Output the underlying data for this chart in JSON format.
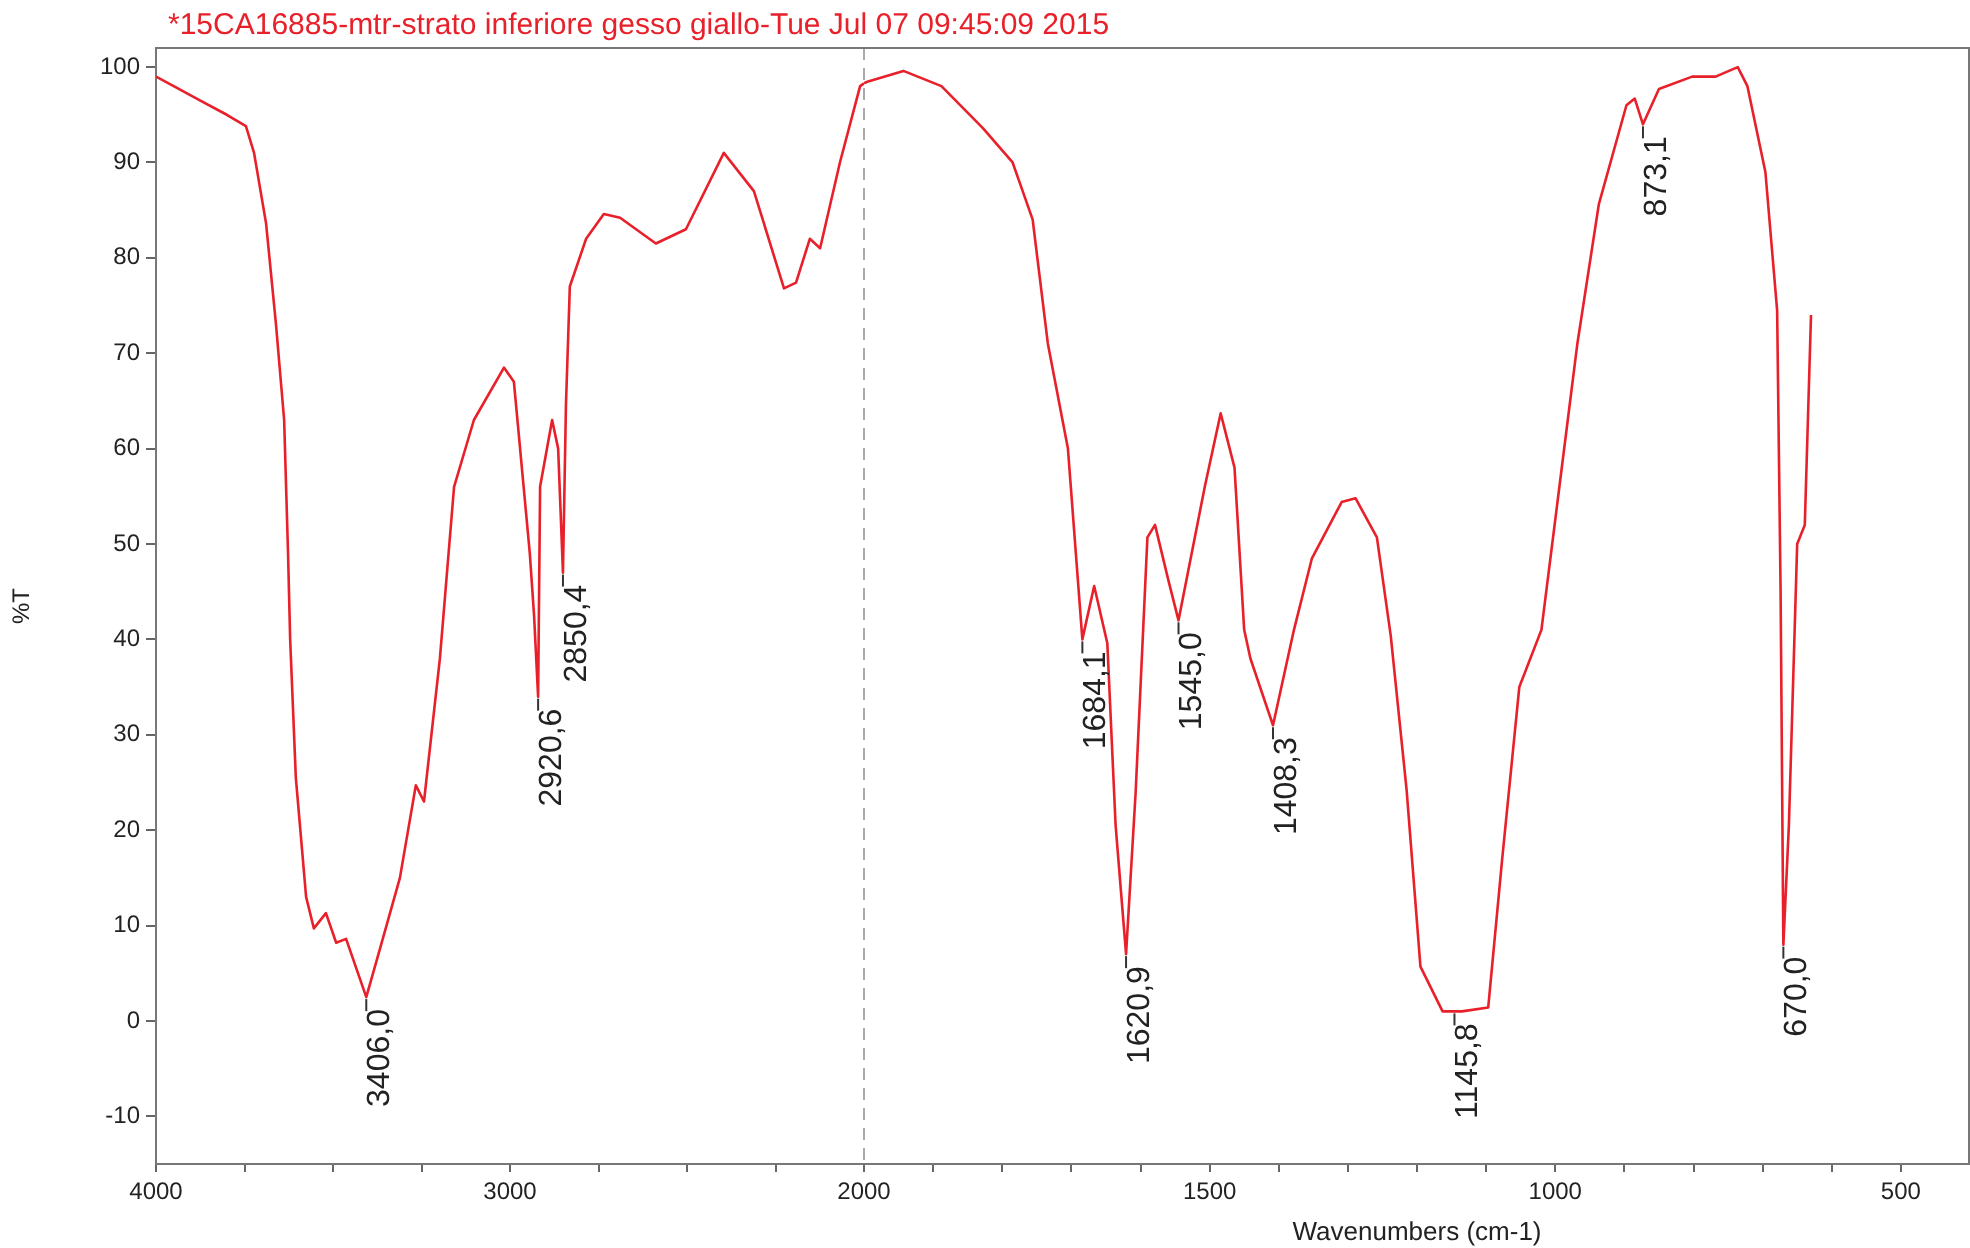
{
  "chart_data": [
    {
      "type": "line",
      "title": "*15CA16885-mtr-strato inferiore gesso giallo-Tue Jul 07 09:45:09 2015",
      "ylabel": "%T",
      "xlim": [
        4000,
        2000
      ],
      "ylim": [
        -15,
        102
      ],
      "xticks": [
        4000,
        {
          "value": 3750,
          "label": null
        },
        {
          "value": 3500,
          "label": null
        },
        {
          "value": 3250,
          "label": null
        },
        3000,
        {
          "value": 2750,
          "label": null
        },
        {
          "value": 2500,
          "label": null
        },
        {
          "value": 2250,
          "label": null
        }
      ],
      "yticks": [
        -10,
        0,
        10,
        20,
        30,
        40,
        50,
        60,
        70,
        80,
        90,
        100
      ],
      "grid": false,
      "legend": false,
      "marker": "none",
      "line_style": "solid",
      "annotations": [
        {
          "text": "3406,0",
          "x": 3406.0,
          "y": 2.5
        },
        {
          "text": "2920,6",
          "x": 2920.6,
          "y": 34
        },
        {
          "text": "2850,4",
          "x": 2850.4,
          "y": 47
        }
      ],
      "series": [
        {
          "color": "#e8202a",
          "x": [
            4000,
            3950,
            3876,
            3800,
            3746,
            3723,
            3689,
            3661,
            3638,
            3627,
            3621,
            3605,
            3576,
            3554,
            3520,
            3491,
            3463,
            3406,
            3367,
            3311,
            3266,
            3243,
            3198,
            3158,
            3102,
            3017,
            2989,
            2944,
            2932,
            2920.6,
            2915,
            2881,
            2864,
            2850.4,
            2842,
            2831,
            2785,
            2735,
            2689,
            2588,
            2503,
            2396,
            2311,
            2226,
            2192,
            2153,
            2124,
            2068,
            2011,
            2000
          ],
          "values": [
            99,
            98,
            96.5,
            95,
            93.8,
            91,
            83.6,
            73,
            63,
            49,
            40,
            25.5,
            13,
            9.7,
            11.3,
            8.2,
            8.6,
            2.5,
            7.6,
            15,
            24.7,
            23,
            38,
            56,
            63,
            68.5,
            67,
            49,
            42.5,
            34,
            56,
            63,
            60,
            47,
            64.5,
            77,
            82,
            84.6,
            84.2,
            81.5,
            83,
            91,
            87,
            76.8,
            77.4,
            82,
            81,
            90,
            98,
            98.3
          ]
        }
      ]
    },
    {
      "type": "line",
      "xlabel": "Wavenumbers (cm-1)",
      "xlim": [
        2000,
        400
      ],
      "ylim": [
        -15,
        102
      ],
      "tick_labels": "x",
      "xticks": [
        2000,
        {
          "value": 1900,
          "label": null
        },
        {
          "value": 1800,
          "label": null
        },
        {
          "value": 1700,
          "label": null
        },
        {
          "value": 1600,
          "label": null
        },
        1500,
        {
          "value": 1400,
          "label": null
        },
        {
          "value": 1300,
          "label": null
        },
        {
          "value": 1200,
          "label": null
        },
        {
          "value": 1100,
          "label": null
        },
        1000,
        {
          "value": 900,
          "label": null
        },
        {
          "value": 800,
          "label": null
        },
        {
          "value": 700,
          "label": null
        },
        {
          "value": 600,
          "label": null
        },
        500
      ],
      "grid": false,
      "legend": false,
      "marker": "none",
      "line_style": "solid",
      "ref_lines": [
        {
          "axis": "x",
          "value": 2000,
          "color": "#aaaaaa",
          "line_style": "dashed"
        }
      ],
      "annotations": [
        {
          "text": "1684,1",
          "x": 1684.1,
          "y": 40
        },
        {
          "text": "1620,9",
          "x": 1620.9,
          "y": 7
        },
        {
          "text": "1545,0",
          "x": 1545.0,
          "y": 42
        },
        {
          "text": "1408,3",
          "x": 1408.3,
          "y": 31
        },
        {
          "text": "1145,8",
          "x": 1145.8,
          "y": 1
        },
        {
          "text": "873,1",
          "x": 873.1,
          "y": 94
        },
        {
          "text": "670,0",
          "x": 670.0,
          "y": 8
        }
      ],
      "series": [
        {
          "color": "#e8202a",
          "x": [
            2000,
            1994,
            1943,
            1888,
            1828,
            1785,
            1756,
            1734,
            1705,
            1684.1,
            1667,
            1648,
            1636,
            1620.9,
            1607,
            1590,
            1579,
            1559,
            1545.0,
            1507,
            1484,
            1464,
            1450,
            1441,
            1408.3,
            1378,
            1352,
            1309,
            1289,
            1258,
            1238,
            1215,
            1195,
            1163,
            1145.8,
            1135,
            1097,
            1077,
            1052,
            1020,
            994,
            968,
            937,
            897,
            885,
            873.1,
            850,
            802,
            768,
            736,
            722,
            696,
            679,
            674,
            670.0,
            662,
            650,
            639,
            630
          ],
          "values": [
            98.3,
            98.5,
            99.6,
            98,
            93.6,
            90,
            84,
            71,
            60,
            40,
            45.6,
            39.6,
            20.5,
            7,
            24,
            50.7,
            52,
            46,
            42,
            56,
            63.7,
            58,
            41,
            38,
            31,
            41,
            48.5,
            54.4,
            54.8,
            50.7,
            40.4,
            24.2,
            5.7,
            1,
            1,
            1,
            1.4,
            16.8,
            35,
            41,
            56,
            71,
            85.6,
            96,
            96.7,
            94,
            97.7,
            99,
            99,
            100,
            98,
            89,
            74.5,
            45,
            8,
            20.5,
            50,
            52,
            74
          ]
        }
      ]
    }
  ]
}
